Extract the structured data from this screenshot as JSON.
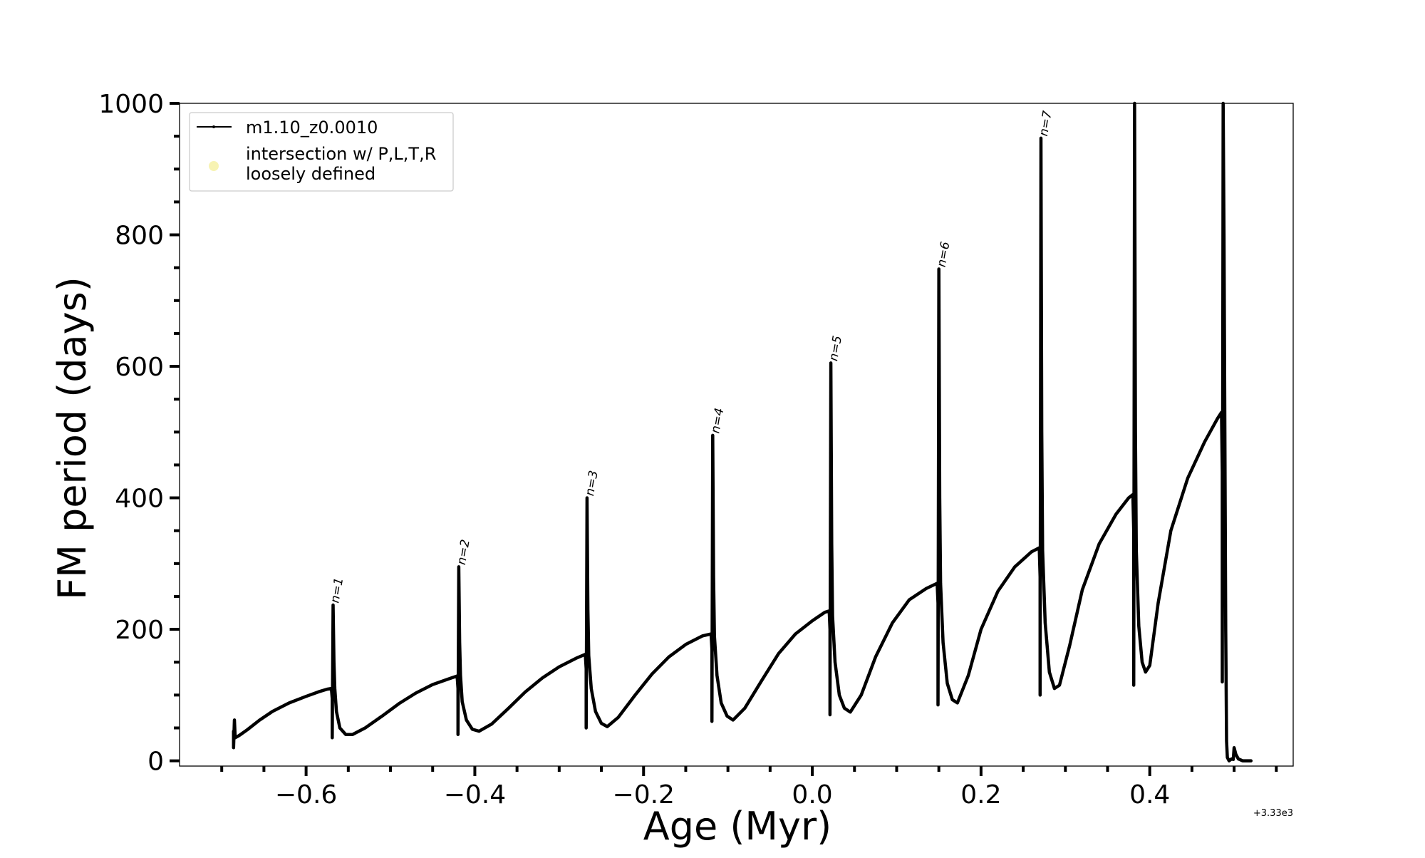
{
  "chart_data": {
    "type": "line",
    "title": "",
    "xlabel": "Age (Myr)",
    "ylabel": "FM period (days)",
    "x_offset_label": "+3.33e3",
    "xlim": [
      -0.75,
      0.57
    ],
    "ylim": [
      -8,
      1000
    ],
    "x_ticks": [
      -0.6,
      -0.4,
      -0.2,
      0.0,
      0.2,
      0.4
    ],
    "x_tick_labels": [
      "−0.6",
      "−0.4",
      "−0.2",
      "0.0",
      "0.2",
      "0.4"
    ],
    "x_minor_ticks": [
      -0.7,
      -0.65,
      -0.55,
      -0.5,
      -0.45,
      -0.35,
      -0.3,
      -0.25,
      -0.15,
      -0.1,
      -0.05,
      0.05,
      0.1,
      0.15,
      0.25,
      0.3,
      0.35,
      0.45,
      0.5,
      0.55
    ],
    "y_ticks": [
      0,
      200,
      400,
      600,
      800,
      1000
    ],
    "y_tick_labels": [
      "0",
      "200",
      "400",
      "600",
      "800",
      "1000"
    ],
    "y_minor_ticks": [
      50,
      100,
      150,
      250,
      300,
      350,
      450,
      500,
      550,
      650,
      700,
      750,
      850,
      900,
      950
    ],
    "grid": false,
    "legend": {
      "placement": "upper-left",
      "entries": [
        {
          "label": "m1.10_z0.0010",
          "style": "line-marker",
          "color": "#000000"
        },
        {
          "label": "intersection w/ P,L,T,R\nloosely defined",
          "style": "circle",
          "color": "#f5f0a0"
        }
      ]
    },
    "series": [
      {
        "name": "m1.10_z0.0010",
        "color": "#000000",
        "points": [
          [
            -0.686,
            45
          ],
          [
            -0.686,
            20
          ],
          [
            -0.685,
            62
          ],
          [
            -0.684,
            35
          ],
          [
            -0.68,
            38
          ],
          [
            -0.67,
            47
          ],
          [
            -0.655,
            62
          ],
          [
            -0.64,
            75
          ],
          [
            -0.62,
            88
          ],
          [
            -0.6,
            98
          ],
          [
            -0.585,
            105
          ],
          [
            -0.575,
            109
          ],
          [
            -0.57,
            110
          ],
          [
            -0.569,
            95
          ],
          [
            -0.569,
            35
          ],
          [
            -0.568,
            237
          ],
          [
            -0.567,
            150
          ],
          [
            -0.566,
            110
          ],
          [
            -0.564,
            75
          ],
          [
            -0.56,
            50
          ],
          [
            -0.553,
            40
          ],
          [
            -0.545,
            40
          ],
          [
            -0.53,
            50
          ],
          [
            -0.51,
            68
          ],
          [
            -0.49,
            87
          ],
          [
            -0.47,
            103
          ],
          [
            -0.45,
            116
          ],
          [
            -0.43,
            125
          ],
          [
            -0.421,
            129
          ],
          [
            -0.42,
            110
          ],
          [
            -0.42,
            40
          ],
          [
            -0.419,
            295
          ],
          [
            -0.418,
            180
          ],
          [
            -0.417,
            130
          ],
          [
            -0.415,
            90
          ],
          [
            -0.41,
            62
          ],
          [
            -0.403,
            48
          ],
          [
            -0.395,
            45
          ],
          [
            -0.38,
            56
          ],
          [
            -0.36,
            80
          ],
          [
            -0.34,
            105
          ],
          [
            -0.32,
            126
          ],
          [
            -0.3,
            143
          ],
          [
            -0.28,
            156
          ],
          [
            -0.269,
            162
          ],
          [
            -0.268,
            140
          ],
          [
            -0.268,
            50
          ],
          [
            -0.267,
            400
          ],
          [
            -0.266,
            230
          ],
          [
            -0.265,
            160
          ],
          [
            -0.262,
            110
          ],
          [
            -0.257,
            75
          ],
          [
            -0.25,
            57
          ],
          [
            -0.243,
            52
          ],
          [
            -0.23,
            66
          ],
          [
            -0.21,
            100
          ],
          [
            -0.19,
            132
          ],
          [
            -0.17,
            158
          ],
          [
            -0.15,
            177
          ],
          [
            -0.13,
            190
          ],
          [
            -0.12,
            193
          ],
          [
            -0.119,
            170
          ],
          [
            -0.119,
            60
          ],
          [
            -0.118,
            495
          ],
          [
            -0.117,
            280
          ],
          [
            -0.116,
            190
          ],
          [
            -0.113,
            130
          ],
          [
            -0.108,
            88
          ],
          [
            -0.101,
            68
          ],
          [
            -0.094,
            62
          ],
          [
            -0.08,
            80
          ],
          [
            -0.06,
            122
          ],
          [
            -0.04,
            163
          ],
          [
            -0.02,
            193
          ],
          [
            0.0,
            213
          ],
          [
            0.015,
            226
          ],
          [
            0.02,
            228
          ],
          [
            0.021,
            200
          ],
          [
            0.021,
            70
          ],
          [
            0.022,
            605
          ],
          [
            0.023,
            330
          ],
          [
            0.024,
            220
          ],
          [
            0.027,
            150
          ],
          [
            0.032,
            100
          ],
          [
            0.038,
            80
          ],
          [
            0.045,
            74
          ],
          [
            0.058,
            100
          ],
          [
            0.075,
            158
          ],
          [
            0.095,
            210
          ],
          [
            0.115,
            245
          ],
          [
            0.135,
            262
          ],
          [
            0.148,
            270
          ],
          [
            0.149,
            240
          ],
          [
            0.149,
            85
          ],
          [
            0.15,
            748
          ],
          [
            0.151,
            400
          ],
          [
            0.152,
            270
          ],
          [
            0.155,
            180
          ],
          [
            0.16,
            118
          ],
          [
            0.166,
            93
          ],
          [
            0.172,
            88
          ],
          [
            0.185,
            130
          ],
          [
            0.2,
            200
          ],
          [
            0.22,
            258
          ],
          [
            0.24,
            295
          ],
          [
            0.26,
            318
          ],
          [
            0.269,
            324
          ],
          [
            0.27,
            280
          ],
          [
            0.27,
            100
          ],
          [
            0.271,
            947
          ],
          [
            0.272,
            500
          ],
          [
            0.273,
            320
          ],
          [
            0.276,
            210
          ],
          [
            0.281,
            135
          ],
          [
            0.287,
            110
          ],
          [
            0.293,
            115
          ],
          [
            0.305,
            175
          ],
          [
            0.32,
            260
          ],
          [
            0.34,
            330
          ],
          [
            0.36,
            375
          ],
          [
            0.375,
            400
          ],
          [
            0.38,
            405
          ],
          [
            0.381,
            350
          ],
          [
            0.381,
            115
          ],
          [
            0.382,
            1000
          ],
          [
            0.383,
            500
          ],
          [
            0.384,
            320
          ],
          [
            0.387,
            205
          ],
          [
            0.391,
            150
          ],
          [
            0.395,
            135
          ],
          [
            0.4,
            145
          ],
          [
            0.41,
            240
          ],
          [
            0.425,
            350
          ],
          [
            0.445,
            430
          ],
          [
            0.465,
            485
          ],
          [
            0.48,
            520
          ],
          [
            0.485,
            530
          ],
          [
            0.486,
            440
          ],
          [
            0.486,
            120
          ],
          [
            0.487,
            1000
          ],
          [
            0.488,
            800
          ],
          [
            0.489,
            500
          ],
          [
            0.49,
            200
          ],
          [
            0.491,
            30
          ],
          [
            0.492,
            5
          ],
          [
            0.494,
            0
          ],
          [
            0.497,
            3
          ],
          [
            0.499,
            2
          ],
          [
            0.5,
            20
          ],
          [
            0.502,
            10
          ],
          [
            0.505,
            3
          ],
          [
            0.51,
            0
          ],
          [
            0.52,
            0
          ]
        ]
      }
    ],
    "annotations": [
      {
        "text": "n=1",
        "x": -0.565,
        "y": 237
      },
      {
        "text": "n=2",
        "x": -0.415,
        "y": 295
      },
      {
        "text": "n=3",
        "x": -0.263,
        "y": 400
      },
      {
        "text": "n=4",
        "x": -0.114,
        "y": 495
      },
      {
        "text": "n=5",
        "x": 0.026,
        "y": 605
      },
      {
        "text": "n=6",
        "x": 0.154,
        "y": 748
      },
      {
        "text": "n=7",
        "x": 0.275,
        "y": 947
      }
    ]
  }
}
